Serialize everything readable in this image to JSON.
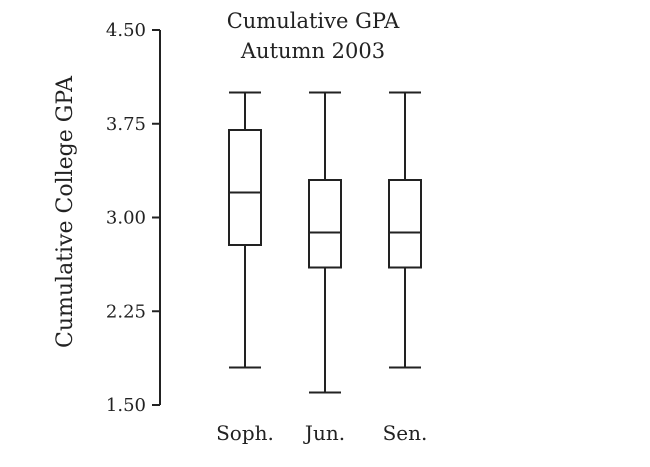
{
  "chart_data": {
    "type": "box",
    "title": "Cumulative GPA",
    "subtitle": "Autumn 2003",
    "xlabel": "",
    "ylabel": "Cumulative College GPA",
    "ylim": [
      1.5,
      4.5
    ],
    "yticks": [
      "4.50",
      "3.75",
      "3.00",
      "2.25",
      "1.50"
    ],
    "categories": [
      "Soph.",
      "Jun.",
      "Sen."
    ],
    "boxes": [
      {
        "name": "Soph.",
        "min": 1.8,
        "q1": 2.78,
        "median": 3.2,
        "q3": 3.7,
        "max": 4.0
      },
      {
        "name": "Jun.",
        "min": 1.6,
        "q1": 2.6,
        "median": 2.88,
        "q3": 3.3,
        "max": 4.0
      },
      {
        "name": "Sen.",
        "min": 1.8,
        "q1": 2.6,
        "median": 2.88,
        "q3": 3.3,
        "max": 4.0
      }
    ],
    "grid": false,
    "legend": "none"
  },
  "colors": {
    "ink": "#222222",
    "background": "#ffffff"
  }
}
